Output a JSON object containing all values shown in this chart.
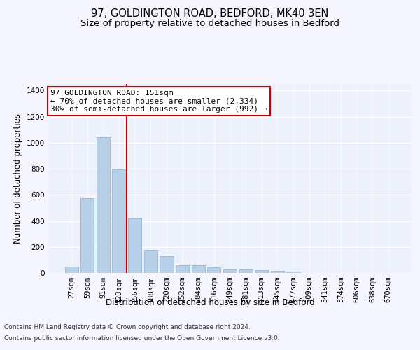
{
  "title1": "97, GOLDINGTON ROAD, BEDFORD, MK40 3EN",
  "title2": "Size of property relative to detached houses in Bedford",
  "xlabel": "Distribution of detached houses by size in Bedford",
  "ylabel": "Number of detached properties",
  "categories": [
    "27sqm",
    "59sqm",
    "91sqm",
    "123sqm",
    "156sqm",
    "188sqm",
    "220sqm",
    "252sqm",
    "284sqm",
    "316sqm",
    "349sqm",
    "381sqm",
    "413sqm",
    "445sqm",
    "477sqm",
    "509sqm",
    "541sqm",
    "574sqm",
    "606sqm",
    "638sqm",
    "670sqm"
  ],
  "values": [
    47,
    574,
    1040,
    793,
    420,
    178,
    128,
    58,
    57,
    44,
    29,
    28,
    20,
    14,
    10,
    0,
    0,
    0,
    0,
    0,
    0
  ],
  "bar_color": "#b8cfe8",
  "bar_edge_color": "#8aafd0",
  "vline_color": "#cc0000",
  "annotation_text": "97 GOLDINGTON ROAD: 151sqm\n← 70% of detached houses are smaller (2,334)\n30% of semi-detached houses are larger (992) →",
  "annotation_box_color": "#ffffff",
  "annotation_box_edge": "#cc0000",
  "ylim": [
    0,
    1450
  ],
  "yticks": [
    0,
    200,
    400,
    600,
    800,
    1000,
    1200,
    1400
  ],
  "footnote1": "Contains HM Land Registry data © Crown copyright and database right 2024.",
  "footnote2": "Contains public sector information licensed under the Open Government Licence v3.0.",
  "bg_color": "#edf1fb",
  "grid_color": "#ffffff",
  "title1_fontsize": 10.5,
  "title2_fontsize": 9.5,
  "axis_label_fontsize": 8.5,
  "tick_fontsize": 7.5,
  "annotation_fontsize": 8,
  "footnote_fontsize": 6.5
}
